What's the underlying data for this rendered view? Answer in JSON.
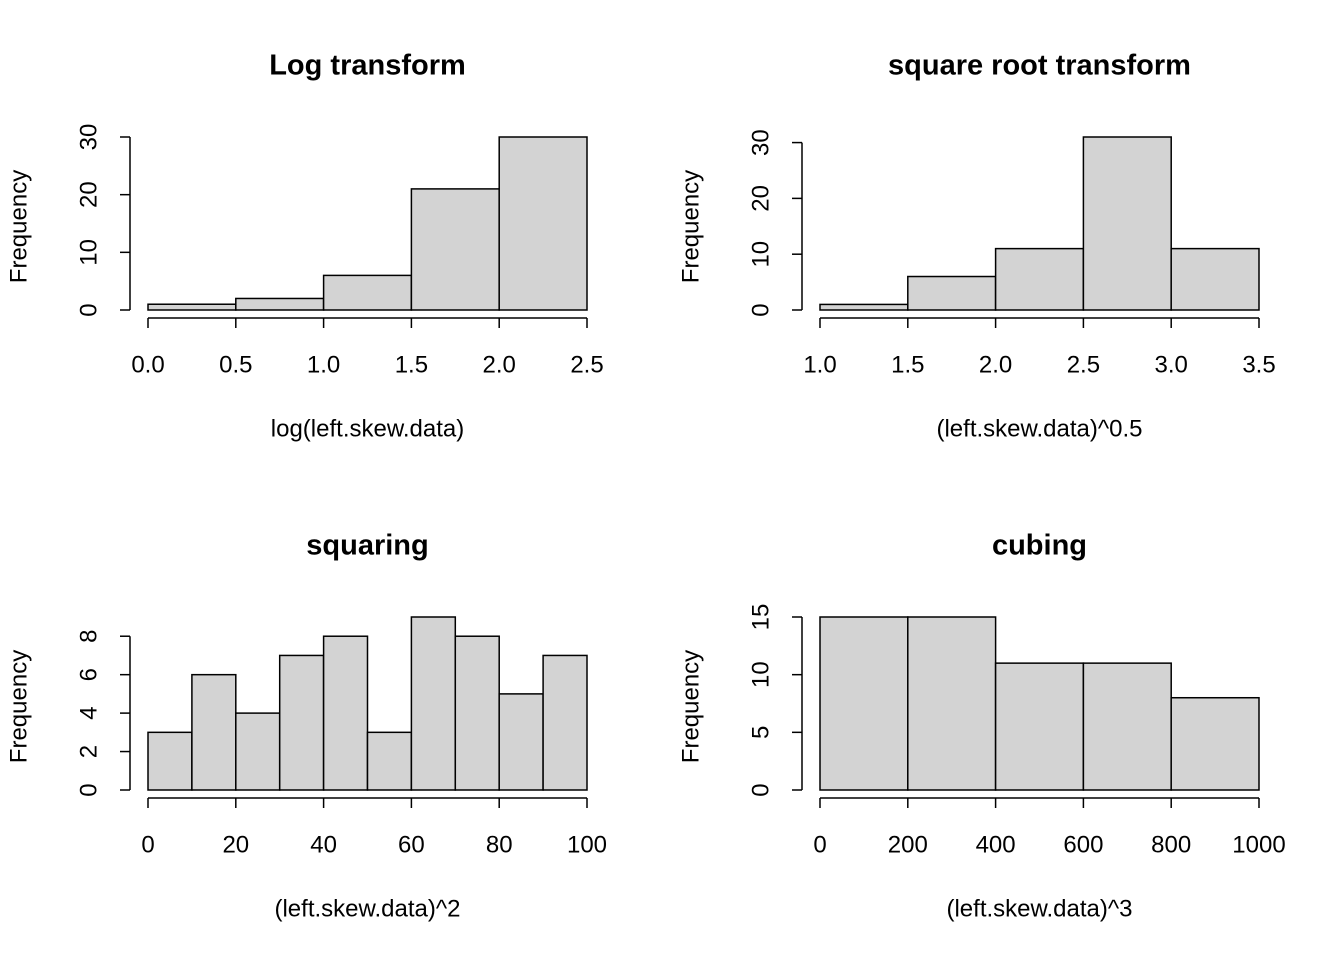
{
  "chart_data": [
    {
      "type": "histogram",
      "title": "Log transform",
      "xlabel": "log(left.skew.data)",
      "ylabel": "Frequency",
      "bins": [
        0,
        0.5,
        1,
        1.5,
        2,
        2.5
      ],
      "values": [
        1,
        2,
        6,
        21,
        30
      ],
      "color": "#d3d3d3",
      "xlim": [
        0,
        2.5
      ],
      "xticks": [
        {
          "value": 0,
          "label": "0.0"
        },
        0.5,
        {
          "value": 1,
          "label": "1.0"
        },
        1.5,
        {
          "value": 2,
          "label": "2.0"
        },
        2.5
      ],
      "ylim": [
        0,
        30
      ],
      "yticks": [
        0,
        10,
        20,
        30
      ]
    },
    {
      "type": "histogram",
      "title": "square root transform",
      "xlabel": "(left.skew.data)^0.5",
      "ylabel": "Frequency",
      "bins": [
        1,
        1.5,
        2,
        2.5,
        3,
        3.5
      ],
      "values": [
        1,
        6,
        11,
        31,
        11
      ],
      "color": "#d3d3d3",
      "xlim": [
        1,
        3.5
      ],
      "xticks": [
        {
          "value": 1,
          "label": "1.0"
        },
        1.5,
        {
          "value": 2,
          "label": "2.0"
        },
        2.5,
        {
          "value": 3,
          "label": "3.0"
        },
        3.5
      ],
      "ylim": [
        0,
        31
      ],
      "yticks": [
        0,
        10,
        20,
        30
      ]
    },
    {
      "type": "histogram",
      "title": "squaring",
      "xlabel": "(left.skew.data)^2",
      "ylabel": "Frequency",
      "bins": [
        0,
        10,
        20,
        30,
        40,
        50,
        60,
        70,
        80,
        90,
        100
      ],
      "values": [
        3,
        6,
        4,
        7,
        8,
        3,
        9,
        8,
        5,
        7
      ],
      "color": "#d3d3d3",
      "xlim": [
        0,
        100
      ],
      "xticks": [
        0,
        20,
        40,
        60,
        80,
        100
      ],
      "ylim": [
        0,
        9
      ],
      "yticks": [
        0,
        2,
        4,
        6,
        8
      ]
    },
    {
      "type": "histogram",
      "title": "cubing",
      "xlabel": "(left.skew.data)^3",
      "ylabel": "Frequency",
      "bins": [
        0,
        200,
        400,
        600,
        800,
        1000
      ],
      "values": [
        15,
        15,
        11,
        11,
        8
      ],
      "color": "#d3d3d3",
      "xlim": [
        0,
        1000
      ],
      "xticks": [
        0,
        200,
        400,
        600,
        800,
        1000
      ],
      "ylim": [
        0,
        15
      ],
      "yticks": [
        0,
        5,
        10,
        15
      ]
    }
  ]
}
